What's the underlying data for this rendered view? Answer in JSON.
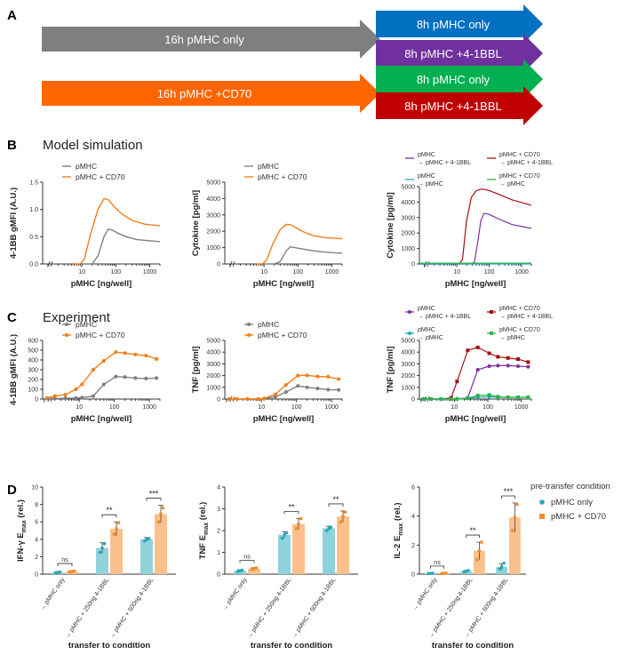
{
  "panel_a": {
    "letter": "A",
    "arrows": [
      {
        "label": "16h pMHC only",
        "color": "#7f7f7f"
      },
      {
        "label": "8h pMHC only",
        "color": "#0070c0"
      },
      {
        "label": "8h pMHC +4-1BBL",
        "color": "#7030a0"
      },
      {
        "label": "16h pMHC +CD70",
        "color": "#ff6600"
      },
      {
        "label": "8h pMHC only",
        "color": "#00b050"
      },
      {
        "label": "8h pMHC +4-1BBL",
        "color": "#c00000"
      }
    ]
  },
  "panel_b": {
    "letter": "B",
    "title": "Model simulation"
  },
  "panel_c": {
    "letter": "C",
    "title": "Experiment"
  },
  "panel_d": {
    "letter": "D",
    "legend_title": "pre-transfer condition",
    "legend_items": [
      {
        "label": "pMHC only",
        "color": "#5bc0d0"
      },
      {
        "label": "pMHC + CD70",
        "color": "#f5a55a"
      }
    ]
  },
  "colors": {
    "pmhc": "#808080",
    "cd70": "#f07f1a",
    "purple": "#7b2fa3",
    "darkred": "#a40f13",
    "teal": "#2aa7b5",
    "green": "#2bb34a",
    "bar_blue": "#8fd2dc",
    "bar_orange": "#fbc08c"
  },
  "chart_data": [
    {
      "id": "B1",
      "type": "line",
      "ylabel": "4-1BB gMFI (A.U.)",
      "xlabel": "pMHC [ng/well]",
      "xscale": "log",
      "ylim": [
        0,
        1.5
      ],
      "yticks": [
        0,
        0.5,
        1.0,
        1.5
      ],
      "ytick_labels": [
        "0.0",
        "0.5",
        "1.0",
        "1.5"
      ],
      "xticks": [
        10,
        100,
        1000
      ],
      "xtick_labels": [
        "10",
        "100",
        "1000"
      ],
      "legend": [
        "pMHC",
        "pMHC + CD70"
      ],
      "series": [
        {
          "name": "pMHC",
          "x": [
            10,
            20,
            30,
            45,
            60,
            80,
            120,
            200,
            400,
            800,
            2000
          ],
          "y": [
            0,
            0,
            0.15,
            0.5,
            0.64,
            0.62,
            0.56,
            0.5,
            0.45,
            0.43,
            0.41
          ]
        },
        {
          "name": "pMHC + CD70",
          "x": [
            6,
            9,
            12,
            18,
            30,
            45,
            60,
            90,
            150,
            300,
            700,
            2000
          ],
          "y": [
            0,
            0,
            0.1,
            0.55,
            1.0,
            1.2,
            1.18,
            1.05,
            0.92,
            0.8,
            0.73,
            0.7
          ]
        }
      ]
    },
    {
      "id": "B2",
      "type": "line",
      "ylabel": "Cytokine [pg/ml]",
      "xlabel": "pMHC [ng/well]",
      "xscale": "log",
      "ylim": [
        0,
        5000
      ],
      "yticks": [
        0,
        1000,
        2000,
        3000,
        4000,
        5000
      ],
      "ytick_labels": [
        "0",
        "1000",
        "2000",
        "3000",
        "4000",
        "5000"
      ],
      "xticks": [
        10,
        100,
        1000
      ],
      "xtick_labels": [
        "10",
        "100",
        "1000"
      ],
      "legend": [
        "pMHC",
        "pMHC + CD70"
      ],
      "series": [
        {
          "name": "pMHC",
          "x": [
            10,
            20,
            30,
            45,
            60,
            80,
            150,
            300,
            700,
            2000
          ],
          "y": [
            0,
            0,
            150,
            800,
            1050,
            1000,
            900,
            800,
            720,
            650
          ]
        },
        {
          "name": "pMHC + CD70",
          "x": [
            6,
            9,
            12,
            18,
            30,
            45,
            60,
            90,
            150,
            300,
            700,
            2000
          ],
          "y": [
            0,
            0,
            250,
            1200,
            2100,
            2420,
            2400,
            2200,
            1950,
            1720,
            1600,
            1550
          ]
        }
      ]
    },
    {
      "id": "B3",
      "type": "line",
      "ylabel": "Cytokine [pg/ml]",
      "xlabel": "pMHC [ng/well]",
      "xscale": "log",
      "ylim": [
        0,
        5000
      ],
      "yticks": [
        0,
        1000,
        2000,
        3000,
        4000,
        5000
      ],
      "ytick_labels": [
        "0",
        "1000",
        "2000",
        "3000",
        "4000",
        "5000"
      ],
      "xticks": [
        10,
        100,
        1000
      ],
      "xtick_labels": [
        "10",
        "100",
        "1000"
      ],
      "legend": [
        {
          "line1": "pMHC",
          "line2": "→ pMHC + 4-1BBL"
        },
        {
          "line1": "pMHC + CD70",
          "line2": "→ pMHC + 4-1BBL"
        },
        {
          "line1": "pMHC",
          "line2": "→ pMHC"
        },
        {
          "line1": "pMHC + CD70",
          "line2": "→ pMHC"
        }
      ],
      "series": [
        {
          "name": "pMHC → pMHC + 4-1BBL",
          "x": [
            0.5,
            25,
            35,
            45,
            55,
            70,
            100,
            200,
            500,
            2000
          ],
          "y": [
            0,
            0,
            100,
            1500,
            2800,
            3280,
            3200,
            2900,
            2550,
            2300
          ]
        },
        {
          "name": "pMHC + CD70 → pMHC + 4-1BBL",
          "x": [
            0.5,
            12,
            15,
            20,
            28,
            40,
            60,
            100,
            200,
            500,
            2000
          ],
          "y": [
            0,
            0,
            300,
            2800,
            4300,
            4750,
            4850,
            4750,
            4500,
            4150,
            3800
          ]
        },
        {
          "name": "pMHC → pMHC",
          "x": [
            0.5,
            2000
          ],
          "y": [
            0,
            0
          ]
        },
        {
          "name": "pMHC + CD70 → pMHC",
          "x": [
            0.5,
            2000
          ],
          "y": [
            50,
            50
          ]
        }
      ]
    },
    {
      "id": "C1",
      "type": "line",
      "ylabel": "4-1BB gMFI (A.U.)",
      "xlabel": "pMHC [ng/well]",
      "xscale": "log",
      "ylim": [
        0,
        600
      ],
      "yticks": [
        0,
        100,
        200,
        300,
        400,
        500,
        600
      ],
      "ytick_labels": [
        "0",
        "100",
        "200",
        "300",
        "400",
        "500",
        "600"
      ],
      "xticks": [
        10,
        100,
        1000
      ],
      "xtick_labels": [
        "10",
        "100",
        "1000"
      ],
      "legend": [
        "pMHC",
        "pMHC + CD70"
      ],
      "series": [
        {
          "name": "pMHC",
          "x": [
            1.2,
            2,
            4,
            8,
            12,
            25,
            50,
            110,
            200,
            400,
            800,
            1600
          ],
          "y": [
            5,
            5,
            8,
            10,
            15,
            30,
            150,
            230,
            225,
            215,
            210,
            215
          ]
        },
        {
          "name": "pMHC + CD70",
          "x": [
            1.2,
            2,
            4,
            8,
            12,
            25,
            50,
            110,
            200,
            400,
            800,
            1600
          ],
          "y": [
            10,
            30,
            45,
            100,
            150,
            300,
            390,
            480,
            470,
            455,
            445,
            410
          ]
        }
      ]
    },
    {
      "id": "C2",
      "type": "line",
      "ylabel": "TNF [pg/ml]",
      "xlabel": "pMHC [ng/well]",
      "xscale": "log",
      "ylim": [
        0,
        5000
      ],
      "yticks": [
        0,
        1000,
        2000,
        3000,
        4000,
        5000
      ],
      "ytick_labels": [
        "0",
        "1000",
        "2000",
        "3000",
        "4000",
        "5000"
      ],
      "xticks": [
        10,
        100,
        1000
      ],
      "xtick_labels": [
        "10",
        "100",
        "1000"
      ],
      "legend": [
        "pMHC",
        "pMHC + CD70"
      ],
      "series": [
        {
          "name": "pMHC",
          "x": [
            1.2,
            2,
            4,
            8,
            12,
            25,
            50,
            110,
            200,
            400,
            800,
            1600
          ],
          "y": [
            0,
            0,
            0,
            0,
            30,
            200,
            600,
            1120,
            1000,
            900,
            800,
            780
          ]
        },
        {
          "name": "pMHC + CD70",
          "x": [
            1.2,
            2,
            4,
            8,
            12,
            25,
            50,
            110,
            200,
            400,
            800,
            1600
          ],
          "y": [
            0,
            0,
            0,
            0,
            50,
            400,
            1200,
            2000,
            2020,
            1920,
            1900,
            1700
          ]
        }
      ]
    },
    {
      "id": "C3",
      "type": "line",
      "ylabel": "TNF [pg/ml]",
      "xlabel": "pMHC [ng/well]",
      "xscale": "log",
      "ylim": [
        0,
        5000
      ],
      "yticks": [
        0,
        1000,
        2000,
        3000,
        4000,
        5000
      ],
      "ytick_labels": [
        "0",
        "1000",
        "2000",
        "3000",
        "4000",
        "5000"
      ],
      "xticks": [
        10,
        100,
        1000
      ],
      "xtick_labels": [
        "10",
        "100",
        "1000"
      ],
      "legend": [
        {
          "line1": "pMHC",
          "line2": "→ pMHC + 4-1BBL"
        },
        {
          "line1": "pMHC + CD70",
          "line2": "→ pMHC + 4-1BBL"
        },
        {
          "line1": "pMHC",
          "line2": "→ pMHC"
        },
        {
          "line1": "pMHC + CD70",
          "line2": "→ pMHC"
        }
      ],
      "series": [
        {
          "name": "pMHC → pMHC + 4-1BBL",
          "x": [
            1.2,
            2,
            4,
            8,
            12,
            25,
            50,
            110,
            200,
            400,
            800,
            1600
          ],
          "y": [
            0,
            0,
            0,
            0,
            20,
            100,
            2500,
            2800,
            2850,
            2850,
            2800,
            2750
          ]
        },
        {
          "name": "pMHC + CD70 → pMHC + 4-1BBL",
          "x": [
            1.2,
            2,
            4,
            8,
            12,
            25,
            50,
            110,
            200,
            400,
            800,
            1600
          ],
          "y": [
            0,
            0,
            0,
            100,
            1500,
            4150,
            4400,
            3900,
            3600,
            3500,
            3400,
            3150
          ]
        },
        {
          "name": "pMHC → pMHC",
          "x": [
            1.2,
            2,
            4,
            8,
            12,
            25,
            50,
            110,
            200,
            400,
            800,
            1600
          ],
          "y": [
            0,
            0,
            0,
            0,
            0,
            50,
            150,
            200,
            150,
            150,
            150,
            150
          ]
        },
        {
          "name": "pMHC + CD70 → pMHC",
          "x": [
            1.2,
            2,
            4,
            8,
            12,
            25,
            50,
            110,
            200,
            400,
            800,
            1600
          ],
          "y": [
            0,
            0,
            0,
            0,
            0,
            80,
            300,
            350,
            200,
            150,
            150,
            150
          ]
        }
      ]
    },
    {
      "id": "D1",
      "type": "bar",
      "ylabel_main": "IFN-γ E",
      "ylabel_sub": "max",
      "ylabel_end": " (rel.)",
      "xlabel": "transfer to condition",
      "ylim": [
        0,
        10
      ],
      "yticks": [
        0,
        2,
        4,
        6,
        8,
        10
      ],
      "ytick_labels": [
        "0",
        "2",
        "4",
        "6",
        "8",
        "10"
      ],
      "categories": [
        "→ pMHC only",
        "→ pMHC + 250ng 4-1BBL",
        "→ pMHC + 500ng 4-1BBL"
      ],
      "series": [
        {
          "name": "pMHC only",
          "values": [
            0.2,
            3.0,
            4.0
          ],
          "errors": [
            0.1,
            0.6,
            0.2
          ],
          "points": [
            [
              0.15,
              0.2,
              0.25
            ],
            [
              2.5,
              3.0,
              3.5
            ],
            [
              3.8,
              4.0,
              4.1
            ]
          ]
        },
        {
          "name": "pMHC + CD70",
          "values": [
            0.3,
            5.2,
            6.9
          ],
          "errors": [
            0.1,
            0.8,
            1.0
          ],
          "points": [
            [
              0.25,
              0.3,
              0.35
            ],
            [
              4.6,
              5.2,
              5.9
            ],
            [
              6.0,
              6.9,
              7.6
            ]
          ]
        }
      ],
      "significance": [
        "ns",
        "**",
        "***"
      ]
    },
    {
      "id": "D2",
      "type": "bar",
      "ylabel_main": "TNF E",
      "ylabel_sub": "max",
      "ylabel_end": " (rel.)",
      "xlabel": "transfer to condition",
      "ylim": [
        0,
        4
      ],
      "yticks": [
        0,
        1,
        2,
        3,
        4
      ],
      "ytick_labels": [
        "0",
        "1",
        "2",
        "3",
        "4"
      ],
      "categories": [
        "→ pMHC only",
        "→ pMHC + 250ng 4-1BBL",
        "→ pMHC + 500ng 4-1BBL"
      ],
      "series": [
        {
          "name": "pMHC only",
          "values": [
            0.15,
            1.8,
            2.1
          ],
          "errors": [
            0.05,
            0.15,
            0.1
          ],
          "points": [
            [
              0.12,
              0.15,
              0.18
            ],
            [
              1.65,
              1.8,
              1.9
            ],
            [
              2.0,
              2.1,
              2.15
            ]
          ]
        },
        {
          "name": "pMHC + CD70",
          "values": [
            0.25,
            2.3,
            2.65
          ],
          "errors": [
            0.05,
            0.25,
            0.25
          ],
          "points": [
            [
              0.22,
              0.25,
              0.28
            ],
            [
              2.1,
              2.3,
              2.55
            ],
            [
              2.4,
              2.65,
              2.85
            ]
          ]
        }
      ],
      "significance": [
        "ns",
        "**",
        "**"
      ]
    },
    {
      "id": "D3",
      "type": "bar",
      "ylabel_main": "IL-2 E",
      "ylabel_sub": "max",
      "ylabel_end": " (rel.)",
      "xlabel": "transfer to condition",
      "ylim": [
        0,
        6
      ],
      "yticks": [
        0,
        2,
        4,
        6
      ],
      "ytick_labels": [
        "0",
        "2",
        "4",
        "6"
      ],
      "categories": [
        "→ pMHC only",
        "→ pMHC + 250ng 4-1BBL",
        "→ pMHC + 500ng 4-1BBL"
      ],
      "series": [
        {
          "name": "pMHC only",
          "values": [
            0.05,
            0.2,
            0.5
          ],
          "errors": [
            0.02,
            0.05,
            0.2
          ],
          "points": [
            [
              0.04,
              0.05,
              0.06
            ],
            [
              0.15,
              0.2,
              0.25
            ],
            [
              0.35,
              0.5,
              0.75
            ]
          ]
        },
        {
          "name": "pMHC + CD70",
          "values": [
            0.05,
            1.6,
            3.9
          ],
          "errors": [
            0.02,
            0.6,
            1.0
          ],
          "points": [
            [
              0.04,
              0.05,
              0.06
            ],
            [
              1.0,
              1.6,
              2.2
            ],
            [
              3.0,
              3.9,
              4.8
            ]
          ]
        }
      ],
      "significance": [
        "ns",
        "**",
        "***"
      ]
    }
  ]
}
